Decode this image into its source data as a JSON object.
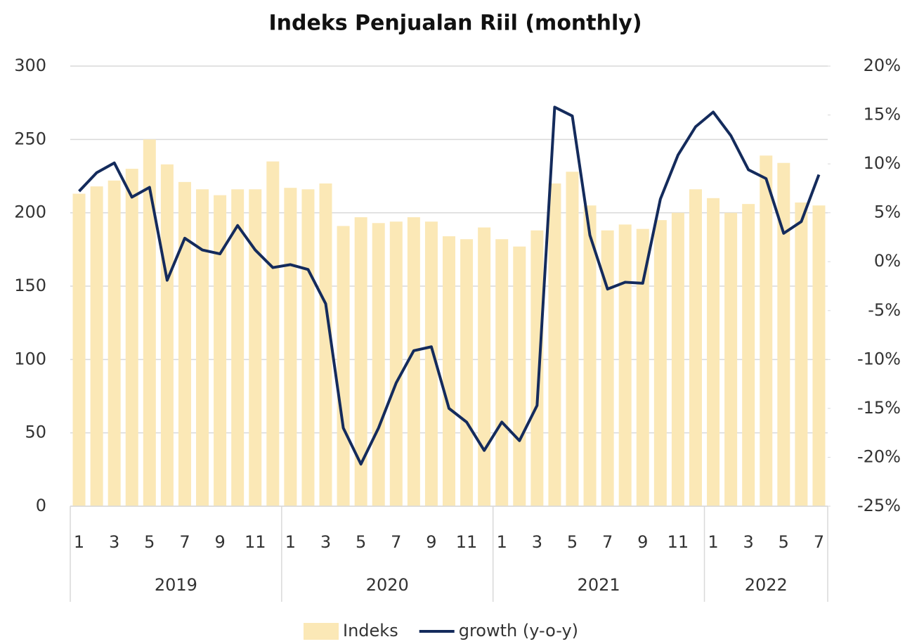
{
  "chart_data": {
    "type": "bar",
    "title": "Indeks Penjualan Riil (monthly)",
    "categories": [
      "1",
      null,
      "3",
      null,
      "5",
      null,
      "7",
      null,
      "9",
      null,
      "11",
      null,
      "1",
      null,
      "3",
      null,
      "5",
      null,
      "7",
      null,
      "9",
      null,
      "11",
      null,
      "1",
      null,
      "3",
      null,
      "5",
      null,
      "7",
      null,
      "9",
      null,
      "11",
      null,
      "1",
      null,
      "3",
      null,
      "5",
      null,
      "7"
    ],
    "groups": [
      "2019",
      "2020",
      "2021",
      "2022"
    ],
    "series": [
      {
        "name": "Indeks",
        "type": "bar",
        "color": "#fbe8b6",
        "values": [
          213,
          218,
          222,
          230,
          250,
          233,
          221,
          216,
          212,
          216,
          216,
          235,
          217,
          216,
          220,
          191,
          197,
          193,
          194,
          197,
          194,
          184,
          182,
          190,
          182,
          177,
          188,
          220,
          228,
          205,
          188,
          192,
          189,
          195,
          200,
          216,
          210,
          200,
          206,
          239,
          234,
          207,
          205
        ]
      },
      {
        "name": "growth (y-o-y)",
        "type": "line",
        "axis": "y2",
        "color": "#142b5c",
        "values": [
          7.2,
          9.1,
          10.1,
          6.6,
          7.6,
          -1.9,
          2.4,
          1.2,
          0.8,
          3.7,
          1.2,
          -0.6,
          -0.3,
          -0.8,
          -4.3,
          -17.0,
          -20.7,
          -17.0,
          -12.4,
          -9.1,
          -8.7,
          -15.0,
          -16.4,
          -19.3,
          -16.4,
          -18.3,
          -14.7,
          15.8,
          14.9,
          2.7,
          -2.8,
          -2.1,
          -2.2,
          6.4,
          10.9,
          13.8,
          15.3,
          12.9,
          9.4,
          8.5,
          2.9,
          4.1,
          8.9
        ]
      }
    ],
    "ylim": [
      0,
      300
    ],
    "yticks": [
      0,
      50,
      100,
      150,
      200,
      250,
      300
    ],
    "y2lim": [
      -25,
      20
    ],
    "y2ticks": [
      {
        "value": -25,
        "label": "-25%"
      },
      {
        "value": -20,
        "label": "-20%"
      },
      {
        "value": -15,
        "label": "-15%"
      },
      {
        "value": -10,
        "label": "-10%"
      },
      {
        "value": -5,
        "label": "-5%"
      },
      {
        "value": 0,
        "label": "0%"
      },
      {
        "value": 5,
        "label": "5%"
      },
      {
        "value": 10,
        "label": "10%"
      },
      {
        "value": 15,
        "label": "15%"
      },
      {
        "value": 20,
        "label": "20%"
      }
    ],
    "grid": true,
    "legend": "bottom"
  }
}
